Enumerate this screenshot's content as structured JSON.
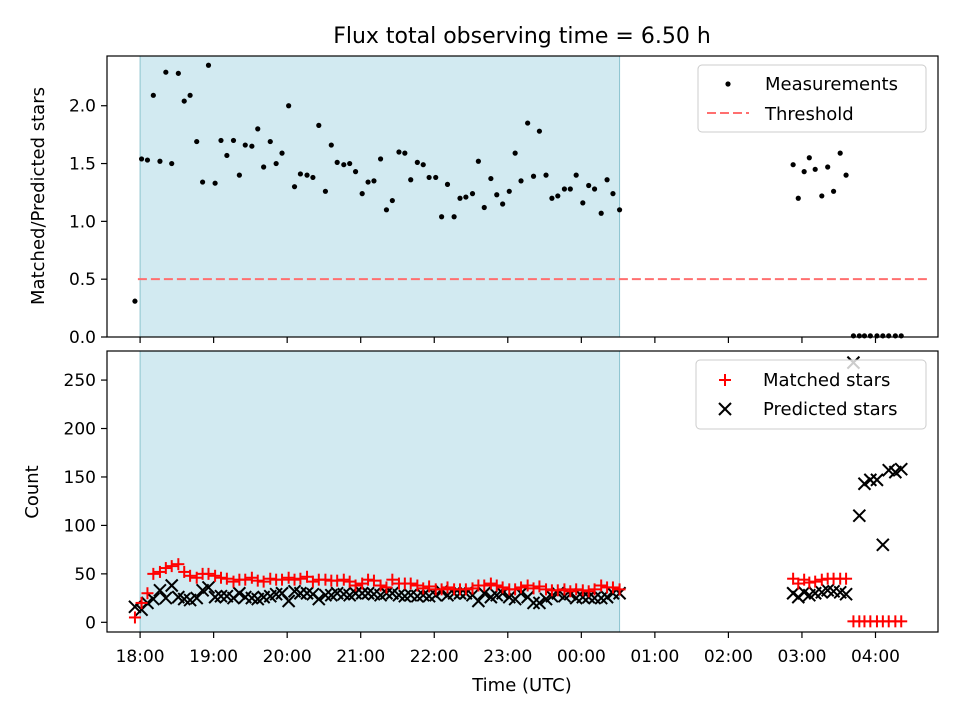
{
  "figure": {
    "title": "Flux total observing time = 6.50 h"
  },
  "colors": {
    "shade": "#add8e6",
    "threshold": "#ff6f6f",
    "matched": "#ff0000",
    "predicted": "#000000",
    "measurement": "#000000"
  },
  "chart_data": [
    {
      "type": "scatter",
      "title": "Flux total observing time = 6.50 h",
      "xlabel": "",
      "ylabel": "Matched/Predicted stars",
      "xlim_hours": [
        17.55,
        28.85
      ],
      "ylim": [
        0,
        2.43
      ],
      "yticks": [
        0.0,
        0.5,
        1.0,
        1.5,
        2.0
      ],
      "ytick_labels": [
        "0.0",
        "0.5",
        "1.0",
        "1.5",
        "2.0"
      ],
      "grid": false,
      "legend_position": "top-right",
      "shaded_span_hours": [
        18.0,
        24.52
      ],
      "threshold": {
        "name": "Threshold",
        "value": 0.5,
        "x_hours": [
          17.97,
          28.7
        ]
      },
      "series": [
        {
          "name": "Measurements",
          "x_hours": [
            17.93,
            18.02,
            18.1,
            18.18,
            18.27,
            18.35,
            18.43,
            18.52,
            18.6,
            18.68,
            18.77,
            18.85,
            18.93,
            19.02,
            19.1,
            19.18,
            19.27,
            19.35,
            19.43,
            19.52,
            19.6,
            19.68,
            19.77,
            19.85,
            19.93,
            20.02,
            20.1,
            20.18,
            20.27,
            20.35,
            20.43,
            20.52,
            20.6,
            20.68,
            20.77,
            20.85,
            20.93,
            21.02,
            21.1,
            21.18,
            21.27,
            21.35,
            21.43,
            21.52,
            21.6,
            21.68,
            21.77,
            21.85,
            21.93,
            22.02,
            22.1,
            22.18,
            22.27,
            22.35,
            22.43,
            22.52,
            22.6,
            22.68,
            22.77,
            22.85,
            22.93,
            23.02,
            23.1,
            23.18,
            23.27,
            23.35,
            23.43,
            23.52,
            23.6,
            23.68,
            23.77,
            23.85,
            23.93,
            24.02,
            24.1,
            24.18,
            24.27,
            24.35,
            24.43,
            24.52,
            26.88,
            26.95,
            27.03,
            27.1,
            27.18,
            27.27,
            27.35,
            27.43,
            27.52,
            27.6,
            27.7,
            27.78,
            27.85,
            27.93,
            28.02,
            28.1,
            28.18,
            28.27,
            28.35
          ],
          "y": [
            0.31,
            1.54,
            1.53,
            2.09,
            1.52,
            2.29,
            1.5,
            2.28,
            2.04,
            2.09,
            1.69,
            1.34,
            2.35,
            1.33,
            1.7,
            1.57,
            1.7,
            1.4,
            1.66,
            1.65,
            1.8,
            1.47,
            1.69,
            1.5,
            1.59,
            2.0,
            1.3,
            1.41,
            1.4,
            1.38,
            1.83,
            1.26,
            1.66,
            1.51,
            1.49,
            1.5,
            1.43,
            1.24,
            1.34,
            1.35,
            1.54,
            1.1,
            1.18,
            1.6,
            1.59,
            1.36,
            1.51,
            1.49,
            1.38,
            1.38,
            1.04,
            1.32,
            1.04,
            1.2,
            1.21,
            1.24,
            1.52,
            1.12,
            1.37,
            1.23,
            1.15,
            1.26,
            1.59,
            1.35,
            1.85,
            1.39,
            1.78,
            1.4,
            1.2,
            1.22,
            1.28,
            1.28,
            1.4,
            1.16,
            1.31,
            1.28,
            1.07,
            1.36,
            1.24,
            1.1,
            1.49,
            1.2,
            1.43,
            1.55,
            1.45,
            1.22,
            1.47,
            1.26,
            1.59,
            1.4,
            0.01,
            0.01,
            0.01,
            0.01,
            0.01,
            0.01,
            0.01,
            0.01,
            0.01
          ]
        }
      ]
    },
    {
      "type": "scatter",
      "xlabel": "Time (UTC)",
      "ylabel": "Count",
      "xlim_hours": [
        17.55,
        28.85
      ],
      "ylim": [
        -10,
        280
      ],
      "yticks": [
        0,
        50,
        100,
        150,
        200,
        250
      ],
      "ytick_labels": [
        "0",
        "50",
        "100",
        "150",
        "200",
        "250"
      ],
      "xticks_hours": [
        18,
        19,
        20,
        21,
        22,
        23,
        24,
        25,
        26,
        27,
        28
      ],
      "xtick_labels": [
        "18:00",
        "19:00",
        "20:00",
        "21:00",
        "22:00",
        "23:00",
        "00:00",
        "01:00",
        "02:00",
        "03:00",
        "04:00"
      ],
      "grid": false,
      "legend_position": "top-right",
      "shaded_span_hours": [
        18.0,
        24.52
      ],
      "series": [
        {
          "name": "Matched stars",
          "marker": "plus",
          "x_hours": [
            17.93,
            18.02,
            18.1,
            18.18,
            18.27,
            18.35,
            18.43,
            18.52,
            18.6,
            18.68,
            18.77,
            18.85,
            18.93,
            19.02,
            19.1,
            19.18,
            19.27,
            19.35,
            19.43,
            19.52,
            19.6,
            19.68,
            19.77,
            19.85,
            19.93,
            20.02,
            20.1,
            20.18,
            20.27,
            20.35,
            20.43,
            20.52,
            20.6,
            20.68,
            20.77,
            20.85,
            20.93,
            21.02,
            21.1,
            21.18,
            21.27,
            21.35,
            21.43,
            21.52,
            21.6,
            21.68,
            21.77,
            21.85,
            21.93,
            22.02,
            22.1,
            22.18,
            22.27,
            22.35,
            22.43,
            22.52,
            22.6,
            22.68,
            22.77,
            22.85,
            22.93,
            23.02,
            23.1,
            23.18,
            23.27,
            23.35,
            23.43,
            23.52,
            23.6,
            23.68,
            23.77,
            23.85,
            23.93,
            24.02,
            24.1,
            24.18,
            24.27,
            24.35,
            24.43,
            24.52,
            26.88,
            26.95,
            27.03,
            27.1,
            27.18,
            27.27,
            27.35,
            27.43,
            27.52,
            27.6,
            27.7,
            27.78,
            27.85,
            27.93,
            28.02,
            28.1,
            28.18,
            28.27,
            28.35
          ],
          "y": [
            5,
            20,
            30,
            50,
            52,
            56,
            58,
            60,
            52,
            48,
            46,
            50,
            50,
            48,
            46,
            45,
            42,
            44,
            44,
            46,
            43,
            42,
            45,
            44,
            44,
            46,
            44,
            45,
            47,
            42,
            44,
            44,
            43,
            43,
            44,
            42,
            38,
            40,
            44,
            43,
            38,
            36,
            44,
            40,
            40,
            40,
            38,
            35,
            37,
            34,
            34,
            36,
            34,
            34,
            34,
            35,
            38,
            38,
            40,
            38,
            36,
            34,
            34,
            36,
            38,
            35,
            37,
            34,
            33,
            33,
            34,
            32,
            34,
            33,
            32,
            34,
            38,
            36,
            36,
            34,
            45,
            40,
            44,
            41,
            42,
            44,
            45,
            45,
            45,
            45,
            1,
            1,
            1,
            1,
            1,
            1,
            1,
            1,
            1
          ]
        },
        {
          "name": "Predicted stars",
          "marker": "x",
          "x_hours": [
            17.93,
            18.02,
            18.1,
            18.18,
            18.27,
            18.35,
            18.43,
            18.52,
            18.6,
            18.68,
            18.77,
            18.85,
            18.93,
            19.02,
            19.1,
            19.18,
            19.27,
            19.35,
            19.43,
            19.52,
            19.6,
            19.68,
            19.77,
            19.85,
            19.93,
            20.02,
            20.1,
            20.18,
            20.27,
            20.35,
            20.43,
            20.52,
            20.6,
            20.68,
            20.77,
            20.85,
            20.93,
            21.02,
            21.1,
            21.18,
            21.27,
            21.35,
            21.43,
            21.52,
            21.6,
            21.68,
            21.77,
            21.85,
            21.93,
            22.02,
            22.1,
            22.18,
            22.27,
            22.35,
            22.43,
            22.52,
            22.6,
            22.68,
            22.77,
            22.85,
            22.93,
            23.02,
            23.1,
            23.18,
            23.27,
            23.35,
            23.43,
            23.52,
            23.6,
            23.68,
            23.77,
            23.85,
            23.93,
            24.02,
            24.1,
            24.18,
            24.27,
            24.35,
            24.43,
            24.52,
            26.88,
            26.95,
            27.03,
            27.1,
            27.18,
            27.27,
            27.35,
            27.43,
            27.52,
            27.6,
            27.7,
            27.78,
            27.85,
            27.93,
            28.02,
            28.1,
            28.18,
            28.27,
            28.35
          ],
          "y": [
            16,
            13,
            20,
            24,
            33,
            25,
            38,
            26,
            24,
            23,
            25,
            33,
            36,
            26,
            27,
            27,
            25,
            30,
            26,
            25,
            24,
            26,
            27,
            29,
            30,
            22,
            32,
            30,
            30,
            29,
            24,
            28,
            28,
            30,
            29,
            28,
            30,
            30,
            30,
            29,
            28,
            30,
            30,
            28,
            27,
            28,
            27,
            28,
            27,
            28,
            32,
            28,
            30,
            30,
            30,
            28,
            22,
            30,
            26,
            28,
            30,
            26,
            24,
            30,
            26,
            20,
            20,
            24,
            27,
            30,
            27,
            29,
            25,
            26,
            26,
            25,
            25,
            26,
            30,
            30,
            30,
            26,
            31,
            28,
            30,
            31,
            33,
            32,
            31,
            29,
            268,
            110,
            143,
            147,
            147,
            80,
            157,
            155,
            158
          ]
        }
      ]
    }
  ]
}
